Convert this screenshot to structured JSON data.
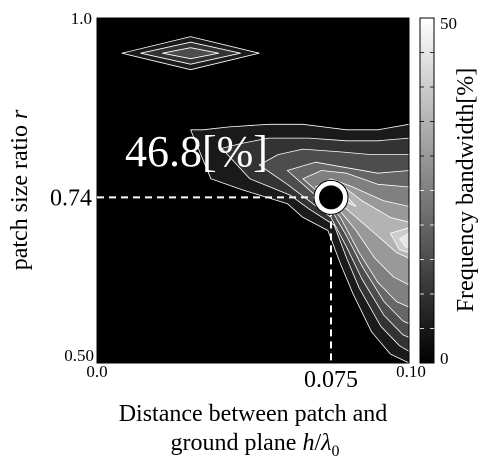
{
  "chart_data": {
    "type": "heatmap",
    "title": "",
    "xlabel_line1": "Distance between patch and",
    "xlabel_line2_prefix": "ground plane ",
    "xlabel_var": "h",
    "xlabel_sep": "/",
    "xlabel_lambda": "λ",
    "xlabel_sub": "0",
    "ylabel_prefix": "patch size ratio ",
    "ylabel_var": "r",
    "xlim": [
      0.0,
      0.1
    ],
    "ylim": [
      0.5,
      1.0
    ],
    "x_ticks": [
      "0.0",
      "0.10"
    ],
    "y_ticks": [
      "0.50",
      "1.0"
    ],
    "colorbar": {
      "label": "Frequency bandwidth[%]",
      "min": 0,
      "max": 50,
      "min_label": "0",
      "max_label": "50",
      "levels": 10
    },
    "optimum": {
      "x": 0.075,
      "y": 0.74,
      "value_label": "46.8[%]",
      "x_label": "0.075",
      "y_label": "0.74"
    },
    "contour_regions": [
      {
        "level": 1,
        "value": 5,
        "polygon": [
          [
            0.03,
            0.838
          ],
          [
            0.0365,
            0.767
          ],
          [
            0.0465,
            0.751
          ],
          [
            0.061,
            0.731
          ],
          [
            0.066,
            0.711
          ],
          [
            0.074,
            0.692
          ],
          [
            0.078,
            0.644
          ],
          [
            0.082,
            0.601
          ],
          [
            0.088,
            0.545
          ],
          [
            0.094,
            0.513
          ],
          [
            0.1,
            0.5
          ],
          [
            0.1,
            0.846
          ],
          [
            0.09,
            0.838
          ],
          [
            0.08,
            0.838
          ],
          [
            0.066,
            0.846
          ],
          [
            0.055,
            0.846
          ],
          [
            0.042,
            0.842
          ],
          [
            0.034,
            0.838
          ]
        ]
      },
      {
        "level": 2,
        "value": 10,
        "polygon": [
          [
            0.04,
            0.811
          ],
          [
            0.049,
            0.767
          ],
          [
            0.062,
            0.743
          ],
          [
            0.068,
            0.723
          ],
          [
            0.076,
            0.7
          ],
          [
            0.08,
            0.652
          ],
          [
            0.084,
            0.609
          ],
          [
            0.091,
            0.553
          ],
          [
            0.097,
            0.525
          ],
          [
            0.1,
            0.517
          ],
          [
            0.1,
            0.826
          ],
          [
            0.09,
            0.822
          ],
          [
            0.08,
            0.822
          ],
          [
            0.068,
            0.826
          ],
          [
            0.055,
            0.826
          ],
          [
            0.046,
            0.818
          ]
        ]
      },
      {
        "level": 3,
        "value": 15,
        "polygon": [
          [
            0.052,
            0.787
          ],
          [
            0.061,
            0.759
          ],
          [
            0.068,
            0.735
          ],
          [
            0.075,
            0.711
          ],
          [
            0.08,
            0.668
          ],
          [
            0.085,
            0.621
          ],
          [
            0.092,
            0.569
          ],
          [
            0.098,
            0.541
          ],
          [
            0.1,
            0.537
          ],
          [
            0.1,
            0.802
          ],
          [
            0.088,
            0.802
          ],
          [
            0.078,
            0.806
          ],
          [
            0.066,
            0.81
          ],
          [
            0.058,
            0.802
          ]
        ]
      },
      {
        "level": 4,
        "value": 20,
        "polygon": [
          [
            0.061,
            0.779
          ],
          [
            0.068,
            0.751
          ],
          [
            0.075,
            0.723
          ],
          [
            0.08,
            0.684
          ],
          [
            0.085,
            0.64
          ],
          [
            0.092,
            0.589
          ],
          [
            0.098,
            0.561
          ],
          [
            0.1,
            0.557
          ],
          [
            0.1,
            0.779
          ],
          [
            0.09,
            0.775
          ],
          [
            0.08,
            0.783
          ],
          [
            0.07,
            0.791
          ]
        ]
      },
      {
        "level": 5,
        "value": 25,
        "polygon": [
          [
            0.066,
            0.767
          ],
          [
            0.072,
            0.743
          ],
          [
            0.078,
            0.711
          ],
          [
            0.084,
            0.66
          ],
          [
            0.09,
            0.617
          ],
          [
            0.096,
            0.589
          ],
          [
            0.1,
            0.581
          ],
          [
            0.1,
            0.755
          ],
          [
            0.09,
            0.759
          ],
          [
            0.08,
            0.775
          ],
          [
            0.072,
            0.779
          ]
        ]
      },
      {
        "level": 6,
        "value": 30,
        "polygon": [
          [
            0.07,
            0.755
          ],
          [
            0.076,
            0.731
          ],
          [
            0.083,
            0.692
          ],
          [
            0.089,
            0.652
          ],
          [
            0.095,
            0.625
          ],
          [
            0.1,
            0.613
          ],
          [
            0.1,
            0.727
          ],
          [
            0.092,
            0.735
          ],
          [
            0.082,
            0.755
          ],
          [
            0.075,
            0.767
          ]
        ]
      },
      {
        "level": 7,
        "value": 35,
        "polygon": [
          [
            0.073,
            0.747
          ],
          [
            0.08,
            0.723
          ],
          [
            0.09,
            0.684
          ],
          [
            0.096,
            0.66
          ],
          [
            0.1,
            0.652
          ],
          [
            0.1,
            0.704
          ],
          [
            0.094,
            0.711
          ],
          [
            0.085,
            0.735
          ],
          [
            0.078,
            0.759
          ]
        ]
      },
      {
        "level": 8,
        "value": 40,
        "polygon": [
          [
            0.075,
            0.743
          ],
          [
            0.083,
            0.727
          ],
          [
            0.078,
            0.751
          ]
        ]
      },
      {
        "level": 8,
        "value": 40,
        "polygon": [
          [
            0.094,
            0.688
          ],
          [
            0.097,
            0.664
          ],
          [
            0.1,
            0.66
          ],
          [
            0.1,
            0.696
          ]
        ]
      },
      {
        "level": 9,
        "value": 45,
        "polygon": [
          [
            0.097,
            0.68
          ],
          [
            0.099,
            0.668
          ],
          [
            0.1,
            0.668
          ],
          [
            0.1,
            0.688
          ]
        ]
      },
      {
        "level": 1,
        "value": 5,
        "polygon": [
          [
            0.008,
            0.949
          ],
          [
            0.03,
            0.925
          ],
          [
            0.052,
            0.949
          ],
          [
            0.03,
            0.973
          ]
        ]
      },
      {
        "level": 2,
        "value": 10,
        "polygon": [
          [
            0.014,
            0.949
          ],
          [
            0.03,
            0.933
          ],
          [
            0.046,
            0.949
          ],
          [
            0.03,
            0.965
          ]
        ]
      },
      {
        "level": 3,
        "value": 15,
        "polygon": [
          [
            0.021,
            0.949
          ],
          [
            0.03,
            0.941
          ],
          [
            0.039,
            0.949
          ],
          [
            0.03,
            0.957
          ]
        ]
      }
    ]
  }
}
